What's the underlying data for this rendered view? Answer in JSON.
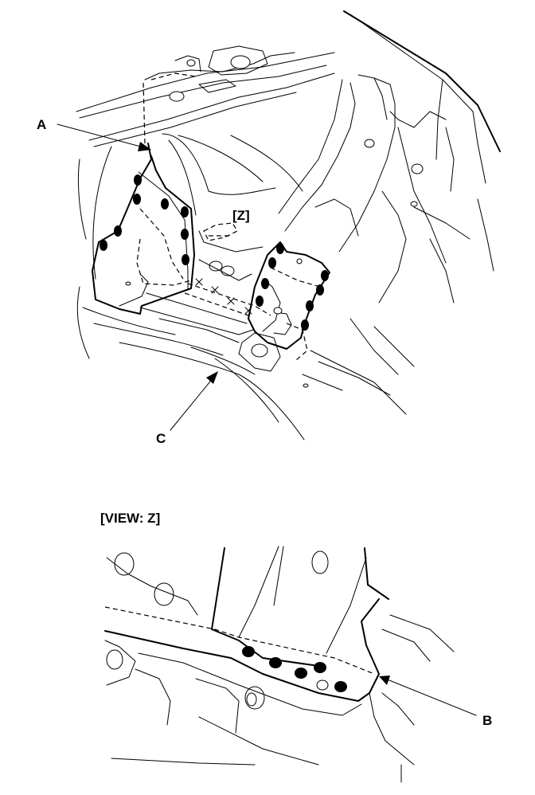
{
  "labels": {
    "a": "A",
    "b": "B",
    "c": "C",
    "z_marker": "[Z]",
    "view_title": "[VIEW: Z]"
  }
}
